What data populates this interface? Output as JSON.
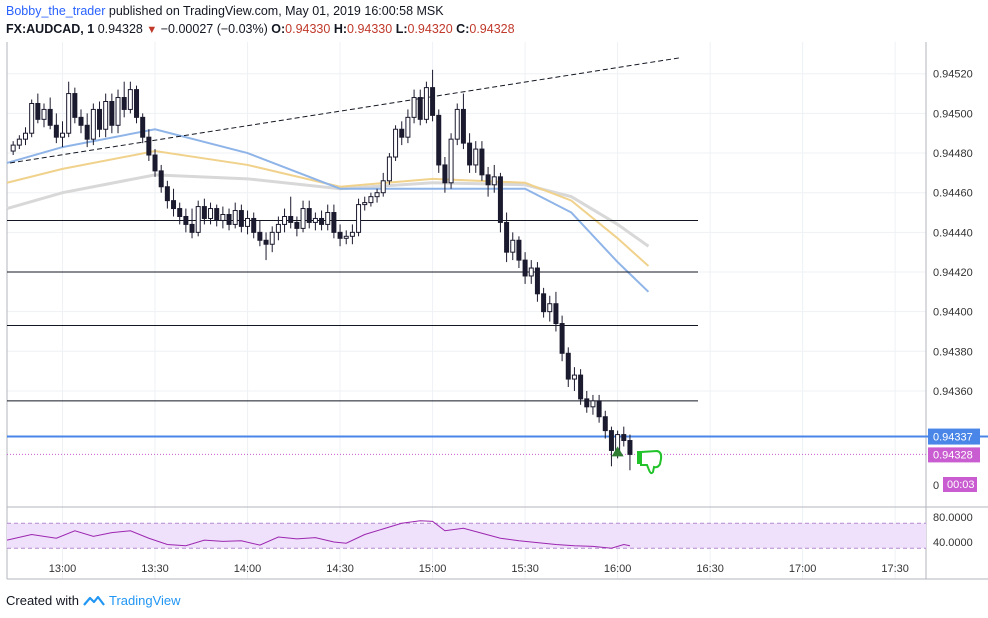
{
  "header": {
    "author": "Bobby_the_trader",
    "published": "published on TradingView.com, May 01, 2019 16:00:58 MSK",
    "symbol": "FX:AUDCAD, 1",
    "last": "0.94328",
    "change": "−0.00027 (−0.03%)",
    "o_label": "O:",
    "o_value": "0.94330",
    "h_label": "H:",
    "h_value": "0.94330",
    "l_label": "L:",
    "l_value": "0.94320",
    "c_label": "C:",
    "c_value": "0.94328"
  },
  "footer": {
    "created_with": "Created with",
    "brand": "TradingView"
  },
  "colors": {
    "candle_up": "#ffffff",
    "candle_down": "#1b1a2e",
    "sma_fast": "#8fb4e8",
    "sma_mid": "#f0d28c",
    "sma_slow": "#d8d8d8",
    "rsi": "#9c27b0",
    "rsi_band": "#efe0fb",
    "hline": "#131722",
    "blue_level": "#4a86e8",
    "price_tag": "#c95cd0"
  },
  "chart_data": {
    "type": "candlestick",
    "x_ticks": [
      "13:00",
      "13:30",
      "14:00",
      "14:30",
      "15:00",
      "15:30",
      "16:00",
      "16:30",
      "17:00",
      "17:30"
    ],
    "y_ticks": [
      "0.94520",
      "0.94500",
      "0.94480",
      "0.94460",
      "0.94440",
      "0.94420",
      "0.94400",
      "0.94380",
      "0.94360"
    ],
    "ylim": [
      0.94305,
      0.94535
    ],
    "price_labels": {
      "blue_level": "0.94337",
      "last_price": "0.94328",
      "countdown": "00:03",
      "axis_zero": "0"
    },
    "horizontal_lines": [
      0.94446,
      0.9442,
      0.94393,
      0.94355,
      0.94337
    ],
    "trendline": {
      "from": [
        "12:43",
        0.94475
      ],
      "to": [
        "16:20",
        0.94528
      ]
    },
    "candles": [
      [
        "12:44",
        0.94481,
        0.94486,
        0.94479,
        0.94484
      ],
      [
        "12:46",
        0.94484,
        0.94489,
        0.94482,
        0.94487
      ],
      [
        "12:48",
        0.94487,
        0.94493,
        0.94484,
        0.9449
      ],
      [
        "12:50",
        0.9449,
        0.94507,
        0.94488,
        0.94505
      ],
      [
        "12:52",
        0.94505,
        0.9451,
        0.94495,
        0.94497
      ],
      [
        "12:54",
        0.94497,
        0.94505,
        0.94493,
        0.94502
      ],
      [
        "12:56",
        0.94502,
        0.94508,
        0.94492,
        0.94494
      ],
      [
        "12:58",
        0.94494,
        0.945,
        0.94485,
        0.94488
      ],
      [
        "13:00",
        0.94488,
        0.94496,
        0.94483,
        0.9449
      ],
      [
        "13:02",
        0.9449,
        0.94516,
        0.94488,
        0.9451
      ],
      [
        "13:04",
        0.9451,
        0.94513,
        0.94495,
        0.94498
      ],
      [
        "13:06",
        0.94498,
        0.94502,
        0.9449,
        0.94494
      ],
      [
        "13:08",
        0.94494,
        0.945,
        0.94483,
        0.94487
      ],
      [
        "13:10",
        0.94487,
        0.94505,
        0.94484,
        0.94502
      ],
      [
        "13:12",
        0.94502,
        0.94506,
        0.94488,
        0.94492
      ],
      [
        "13:14",
        0.94492,
        0.9451,
        0.94488,
        0.94506
      ],
      [
        "13:16",
        0.94506,
        0.9451,
        0.9449,
        0.94494
      ],
      [
        "13:18",
        0.94494,
        0.94512,
        0.9449,
        0.94508
      ],
      [
        "13:20",
        0.94508,
        0.94516,
        0.94498,
        0.94502
      ],
      [
        "13:22",
        0.94502,
        0.94516,
        0.945,
        0.94512
      ],
      [
        "13:24",
        0.94512,
        0.94514,
        0.94495,
        0.94498
      ],
      [
        "13:26",
        0.94498,
        0.945,
        0.94485,
        0.94488
      ],
      [
        "13:28",
        0.94488,
        0.94492,
        0.94476,
        0.94479
      ],
      [
        "13:30",
        0.94479,
        0.94482,
        0.94468,
        0.94471
      ],
      [
        "13:32",
        0.94471,
        0.94474,
        0.9446,
        0.94463
      ],
      [
        "13:34",
        0.94463,
        0.94466,
        0.94452,
        0.94456
      ],
      [
        "13:36",
        0.94456,
        0.94462,
        0.94448,
        0.94452
      ],
      [
        "13:38",
        0.94452,
        0.94455,
        0.94444,
        0.94448
      ],
      [
        "13:40",
        0.94448,
        0.94452,
        0.9444,
        0.94444
      ],
      [
        "13:42",
        0.94444,
        0.94452,
        0.94437,
        0.9444
      ],
      [
        "13:44",
        0.9444,
        0.94456,
        0.94438,
        0.94453
      ],
      [
        "13:46",
        0.94453,
        0.94457,
        0.94444,
        0.94447
      ],
      [
        "13:48",
        0.94447,
        0.94455,
        0.94444,
        0.94452
      ],
      [
        "13:50",
        0.94452,
        0.94454,
        0.94443,
        0.94446
      ],
      [
        "13:52",
        0.94446,
        0.94453,
        0.94442,
        0.94449
      ],
      [
        "13:54",
        0.94449,
        0.94452,
        0.94441,
        0.94444
      ],
      [
        "13:56",
        0.94444,
        0.94455,
        0.94442,
        0.94451
      ],
      [
        "13:58",
        0.94451,
        0.94454,
        0.9444,
        0.94443
      ],
      [
        "14:00",
        0.94443,
        0.94451,
        0.94439,
        0.94447
      ],
      [
        "14:02",
        0.94447,
        0.9445,
        0.94437,
        0.9444
      ],
      [
        "14:04",
        0.9444,
        0.94446,
        0.94433,
        0.94436
      ],
      [
        "14:06",
        0.94436,
        0.9444,
        0.94426,
        0.94434
      ],
      [
        "14:08",
        0.94434,
        0.94443,
        0.9443,
        0.9444
      ],
      [
        "14:10",
        0.9444,
        0.94448,
        0.94436,
        0.94444
      ],
      [
        "14:12",
        0.94444,
        0.94452,
        0.9444,
        0.94448
      ],
      [
        "14:14",
        0.94448,
        0.94458,
        0.94442,
        0.94445
      ],
      [
        "14:16",
        0.94445,
        0.94448,
        0.94438,
        0.94442
      ],
      [
        "14:18",
        0.94442,
        0.94456,
        0.9444,
        0.94452
      ],
      [
        "14:20",
        0.94452,
        0.94456,
        0.94442,
        0.94445
      ],
      [
        "14:22",
        0.94445,
        0.9445,
        0.94441,
        0.94447
      ],
      [
        "14:24",
        0.94447,
        0.94451,
        0.94441,
        0.94444
      ],
      [
        "14:26",
        0.94444,
        0.94454,
        0.94441,
        0.9445
      ],
      [
        "14:28",
        0.9445,
        0.94454,
        0.94437,
        0.9444
      ],
      [
        "14:30",
        0.9444,
        0.94444,
        0.94433,
        0.94437
      ],
      [
        "14:32",
        0.94437,
        0.94441,
        0.94434,
        0.94438
      ],
      [
        "14:34",
        0.94438,
        0.94444,
        0.94434,
        0.9444
      ],
      [
        "14:36",
        0.9444,
        0.94457,
        0.94438,
        0.94454
      ],
      [
        "14:38",
        0.94454,
        0.94458,
        0.94451,
        0.94455
      ],
      [
        "14:40",
        0.94455,
        0.9446,
        0.94453,
        0.94458
      ],
      [
        "14:42",
        0.94458,
        0.94462,
        0.94455,
        0.9446
      ],
      [
        "14:44",
        0.9446,
        0.9447,
        0.94458,
        0.94466
      ],
      [
        "14:46",
        0.94466,
        0.9448,
        0.94464,
        0.94478
      ],
      [
        "14:48",
        0.94478,
        0.94494,
        0.94476,
        0.94492
      ],
      [
        "14:50",
        0.94492,
        0.94496,
        0.94484,
        0.94488
      ],
      [
        "14:52",
        0.94488,
        0.94502,
        0.94485,
        0.94498
      ],
      [
        "14:54",
        0.94498,
        0.94512,
        0.94495,
        0.94508
      ],
      [
        "14:56",
        0.94508,
        0.94512,
        0.94494,
        0.94497
      ],
      [
        "14:58",
        0.94497,
        0.94516,
        0.94495,
        0.94513
      ],
      [
        "15:00",
        0.94513,
        0.94522,
        0.94496,
        0.94499
      ],
      [
        "15:02",
        0.94499,
        0.94502,
        0.9447,
        0.94474
      ],
      [
        "15:04",
        0.94474,
        0.94478,
        0.9446,
        0.94465
      ],
      [
        "15:06",
        0.94465,
        0.9449,
        0.94462,
        0.94487
      ],
      [
        "15:08",
        0.94487,
        0.94505,
        0.94484,
        0.94502
      ],
      [
        "15:10",
        0.94502,
        0.9451,
        0.94482,
        0.94485
      ],
      [
        "15:12",
        0.94485,
        0.9449,
        0.9447,
        0.94474
      ],
      [
        "15:14",
        0.94474,
        0.94486,
        0.9447,
        0.94482
      ],
      [
        "15:16",
        0.94482,
        0.94486,
        0.94466,
        0.94469
      ],
      [
        "15:18",
        0.94469,
        0.94473,
        0.94458,
        0.94464
      ],
      [
        "15:20",
        0.94464,
        0.94474,
        0.9446,
        0.94468
      ],
      [
        "15:22",
        0.94468,
        0.9447,
        0.9444,
        0.94445
      ],
      [
        "15:24",
        0.94445,
        0.9445,
        0.94425,
        0.9443
      ],
      [
        "15:26",
        0.9443,
        0.9444,
        0.94426,
        0.94436
      ],
      [
        "15:28",
        0.94436,
        0.94438,
        0.94422,
        0.94426
      ],
      [
        "15:30",
        0.94426,
        0.9443,
        0.94414,
        0.94418
      ],
      [
        "15:32",
        0.94418,
        0.94426,
        0.94414,
        0.94422
      ],
      [
        "15:34",
        0.94422,
        0.94425,
        0.94405,
        0.94409
      ],
      [
        "15:36",
        0.94409,
        0.94412,
        0.94397,
        0.944
      ],
      [
        "15:38",
        0.944,
        0.94408,
        0.94395,
        0.94404
      ],
      [
        "15:40",
        0.94404,
        0.9441,
        0.9439,
        0.94394
      ],
      [
        "15:42",
        0.94394,
        0.94398,
        0.94375,
        0.94379
      ],
      [
        "15:44",
        0.94379,
        0.94382,
        0.94362,
        0.94366
      ],
      [
        "15:46",
        0.94366,
        0.94372,
        0.9436,
        0.94368
      ],
      [
        "15:48",
        0.94368,
        0.94371,
        0.94353,
        0.94356
      ],
      [
        "15:50",
        0.94356,
        0.9436,
        0.94349,
        0.94352
      ],
      [
        "15:52",
        0.94352,
        0.94358,
        0.94348,
        0.94355
      ],
      [
        "15:54",
        0.94355,
        0.94358,
        0.94344,
        0.94347
      ],
      [
        "15:56",
        0.94347,
        0.9435,
        0.94336,
        0.9434
      ],
      [
        "15:58",
        0.9434,
        0.94342,
        0.94322,
        0.9433
      ],
      [
        "16:00",
        0.9433,
        0.9434,
        0.94326,
        0.94338
      ],
      [
        "16:02",
        0.94338,
        0.94342,
        0.94332,
        0.94335
      ],
      [
        "16:04",
        0.94335,
        0.94338,
        0.9432,
        0.94328
      ]
    ],
    "sma_fast": [
      [
        "12:42",
        0.94475
      ],
      [
        "13:00",
        0.94483
      ],
      [
        "13:30",
        0.94492
      ],
      [
        "14:00",
        0.9448
      ],
      [
        "14:30",
        0.94462
      ],
      [
        "15:00",
        0.94462
      ],
      [
        "15:30",
        0.94462
      ],
      [
        "15:45",
        0.9445
      ],
      [
        "16:00",
        0.94425
      ],
      [
        "16:10",
        0.9441
      ]
    ],
    "sma_mid": [
      [
        "12:42",
        0.94465
      ],
      [
        "13:00",
        0.94472
      ],
      [
        "13:30",
        0.94481
      ],
      [
        "14:00",
        0.94474
      ],
      [
        "14:30",
        0.94463
      ],
      [
        "15:00",
        0.94467
      ],
      [
        "15:30",
        0.94465
      ],
      [
        "15:45",
        0.94456
      ],
      [
        "16:00",
        0.94437
      ],
      [
        "16:10",
        0.94423
      ]
    ],
    "sma_slow": [
      [
        "12:42",
        0.94452
      ],
      [
        "13:00",
        0.9446
      ],
      [
        "13:30",
        0.94469
      ],
      [
        "14:00",
        0.94467
      ],
      [
        "14:30",
        0.94462
      ],
      [
        "15:00",
        0.94465
      ],
      [
        "15:30",
        0.94464
      ],
      [
        "15:45",
        0.94458
      ],
      [
        "16:00",
        0.94444
      ],
      [
        "16:10",
        0.94433
      ]
    ],
    "rsi": {
      "y_ticks": [
        "80.0000",
        "40.0000"
      ],
      "ylim": [
        24,
        96
      ],
      "band": [
        30,
        70
      ],
      "values": [
        [
          "12:42",
          43
        ],
        [
          "12:50",
          52
        ],
        [
          "12:58",
          46
        ],
        [
          "13:04",
          58
        ],
        [
          "13:10",
          49
        ],
        [
          "13:16",
          55
        ],
        [
          "13:22",
          58
        ],
        [
          "13:28",
          46
        ],
        [
          "13:34",
          36
        ],
        [
          "13:40",
          34
        ],
        [
          "13:46",
          43
        ],
        [
          "13:52",
          41
        ],
        [
          "13:58",
          42
        ],
        [
          "14:04",
          35
        ],
        [
          "14:10",
          48
        ],
        [
          "14:16",
          45
        ],
        [
          "14:22",
          47
        ],
        [
          "14:28",
          40
        ],
        [
          "14:32",
          38
        ],
        [
          "14:38",
          52
        ],
        [
          "14:44",
          61
        ],
        [
          "14:50",
          70
        ],
        [
          "14:56",
          74
        ],
        [
          "15:00",
          73
        ],
        [
          "15:04",
          58
        ],
        [
          "15:10",
          62
        ],
        [
          "15:16",
          54
        ],
        [
          "15:22",
          46
        ],
        [
          "15:28",
          42
        ],
        [
          "15:34",
          39
        ],
        [
          "15:40",
          36
        ],
        [
          "15:46",
          34
        ],
        [
          "15:52",
          33
        ],
        [
          "15:58",
          30
        ],
        [
          "16:02",
          36
        ],
        [
          "16:04",
          34
        ]
      ]
    }
  }
}
